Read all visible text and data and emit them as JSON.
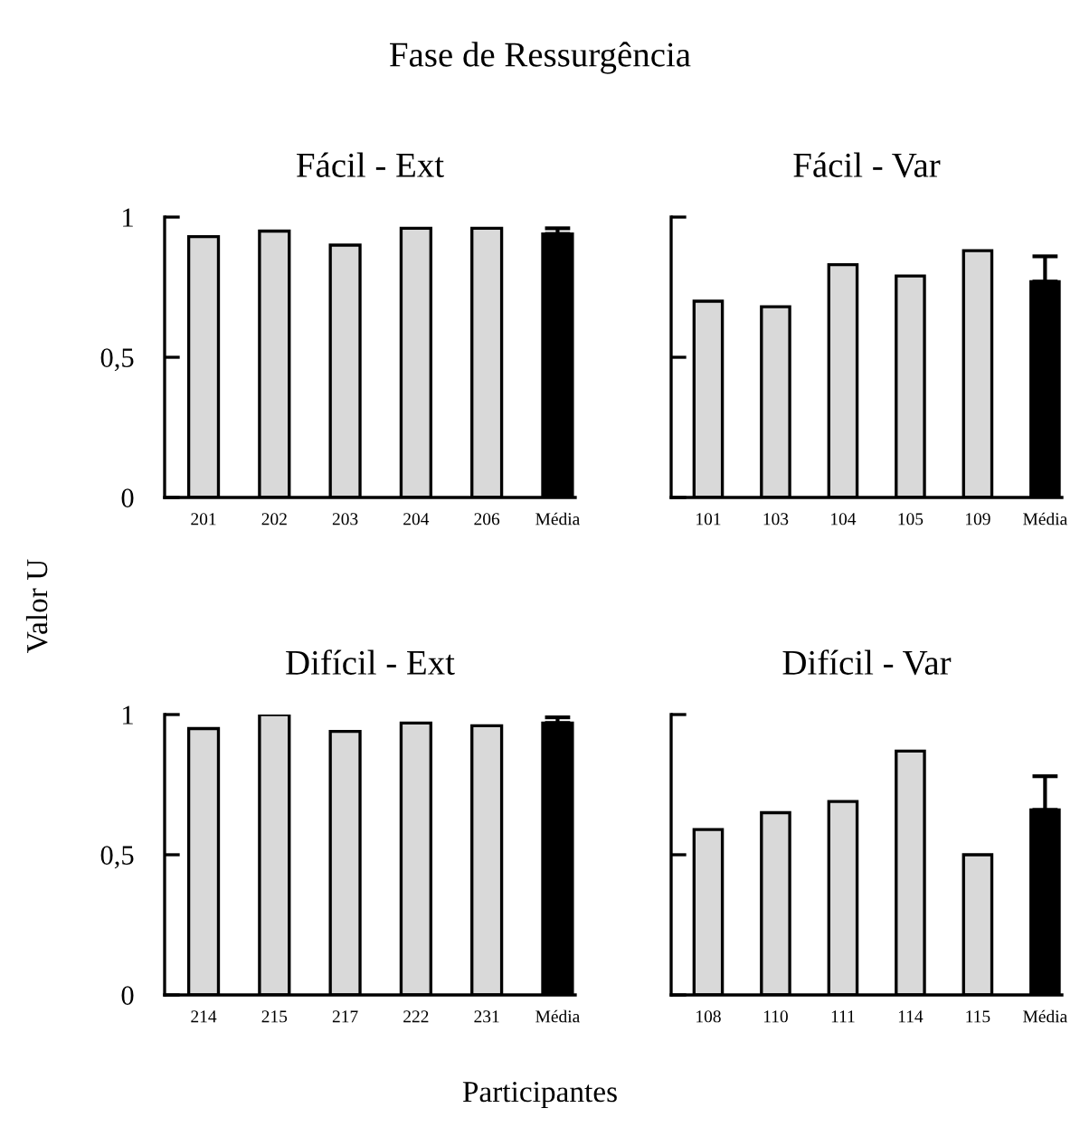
{
  "chart_data": [
    {
      "type": "bar",
      "title": "Fácil - Ext",
      "annotations": [
        "Fase de Ressurgência"
      ],
      "ylabel": "Valor U",
      "categories": [
        "201",
        "202",
        "203",
        "204",
        "206",
        "Média"
      ],
      "values": [
        0.93,
        0.95,
        0.9,
        0.96,
        0.96,
        0.94
      ],
      "colors": [
        "#d9d9d9",
        "#d9d9d9",
        "#d9d9d9",
        "#d9d9d9",
        "#d9d9d9",
        "#000000"
      ],
      "errors": [
        null,
        null,
        null,
        null,
        null,
        [
          0.94,
          0.96
        ]
      ],
      "ylim": [
        0,
        1
      ],
      "yticks": [
        0,
        {
          "value": 0.5,
          "label": "0,5"
        },
        1
      ],
      "grid": false
    },
    {
      "type": "bar",
      "title": "Fácil - Var",
      "categories": [
        "101",
        "103",
        "104",
        "105",
        "109",
        "Média"
      ],
      "values": [
        0.7,
        0.68,
        0.83,
        0.79,
        0.88,
        0.77
      ],
      "colors": [
        "#d9d9d9",
        "#d9d9d9",
        "#d9d9d9",
        "#d9d9d9",
        "#d9d9d9",
        "#000000"
      ],
      "errors": [
        null,
        null,
        null,
        null,
        null,
        [
          0.77,
          0.86
        ]
      ],
      "ylim": [
        0,
        1
      ],
      "yticks": [
        {
          "value": 0,
          "label": null
        },
        {
          "value": 0.5,
          "label": null
        },
        {
          "value": 1,
          "label": null
        }
      ],
      "tick_labels": "x",
      "grid": false
    },
    {
      "type": "bar",
      "title": "Difícil - Ext",
      "xlabel": "Participantes",
      "categories": [
        "214",
        "215",
        "217",
        "222",
        "231",
        "Média"
      ],
      "values": [
        0.95,
        1.0,
        0.94,
        0.97,
        0.96,
        0.97
      ],
      "colors": [
        "#d9d9d9",
        "#d9d9d9",
        "#d9d9d9",
        "#d9d9d9",
        "#d9d9d9",
        "#000000"
      ],
      "errors": [
        null,
        null,
        null,
        null,
        null,
        [
          0.97,
          0.99
        ]
      ],
      "ylim": [
        0,
        1
      ],
      "yticks": [
        0,
        {
          "value": 0.5,
          "label": "0,5"
        },
        1
      ],
      "grid": false
    },
    {
      "type": "bar",
      "title": "Difícil - Var",
      "categories": [
        "108",
        "110",
        "111",
        "114",
        "115",
        "Média"
      ],
      "values": [
        0.59,
        0.65,
        0.69,
        0.87,
        0.5,
        0.66
      ],
      "colors": [
        "#d9d9d9",
        "#d9d9d9",
        "#d9d9d9",
        "#d9d9d9",
        "#d9d9d9",
        "#000000"
      ],
      "errors": [
        null,
        null,
        null,
        null,
        null,
        [
          0.66,
          0.78
        ]
      ],
      "ylim": [
        0,
        1
      ],
      "yticks": [
        {
          "value": 0,
          "label": null
        },
        {
          "value": 0.5,
          "label": null
        },
        {
          "value": 1,
          "label": null
        }
      ],
      "tick_labels": "x",
      "grid": false
    }
  ]
}
